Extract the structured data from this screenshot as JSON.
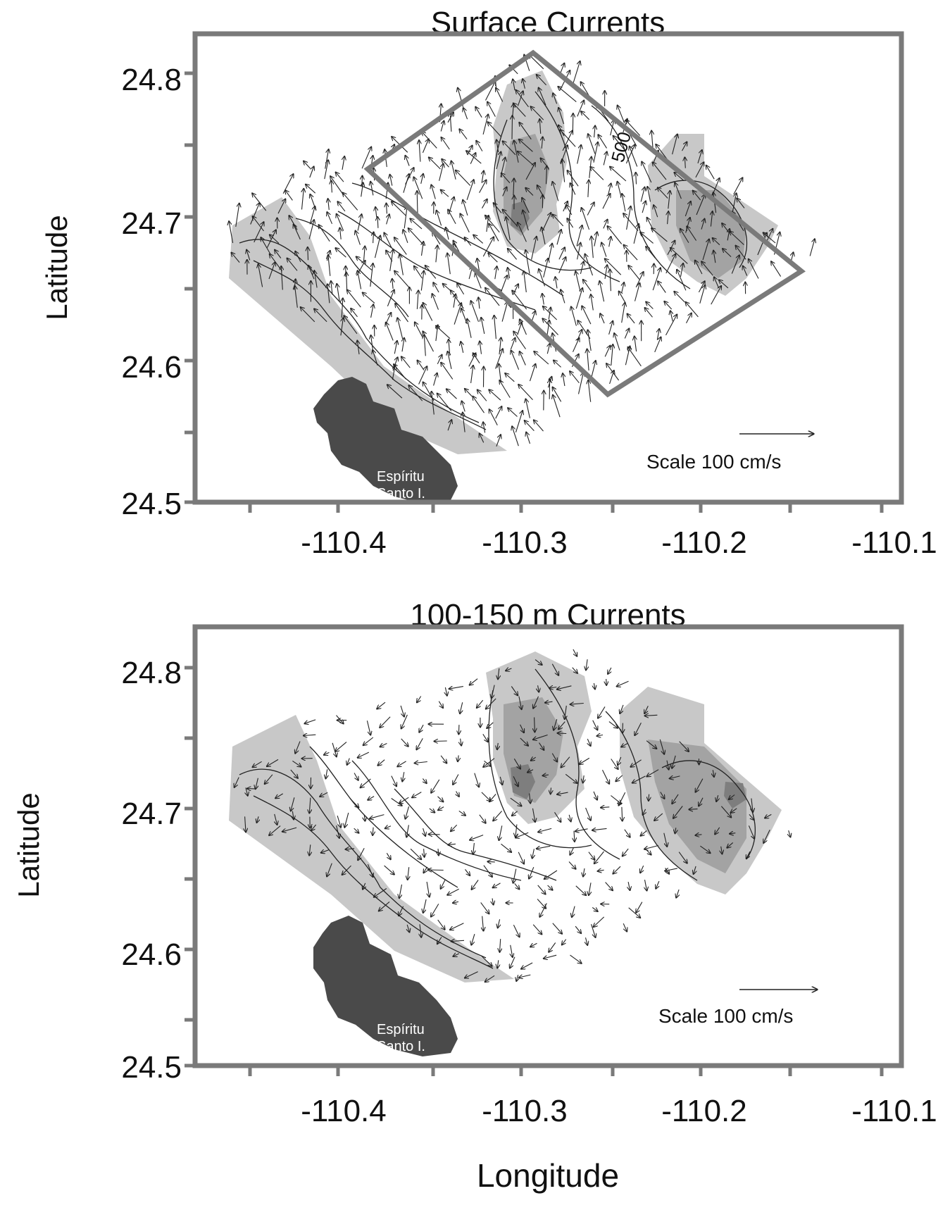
{
  "figure": {
    "x_axis_label": "Longitude",
    "y_axis_label": "Latitude",
    "x_ticks": [
      "-110.4",
      "-110.3",
      "-110.2",
      "-110.1"
    ],
    "y_ticks": [
      "24.5",
      "24.6",
      "24.7",
      "24.8"
    ]
  },
  "panels": [
    {
      "title": "Surface Currents",
      "scale_label": "Scale  100 cm/s",
      "island_label_line1": "Espíritu",
      "island_label_line2": "Santo I.",
      "contour_label": "500"
    },
    {
      "title": "100-150 m Currents",
      "scale_label": "Scale 100 cm/s",
      "island_label_line1": "Espíritu",
      "island_label_line2": "Santo I."
    }
  ],
  "colors": {
    "frame": "#7a7a7a",
    "shallow_fill": "#c8c8c8",
    "mid_fill": "#a3a3a3",
    "deep_fill": "#7e7e7e",
    "island": "#4a4a4a",
    "line": "#222222"
  }
}
